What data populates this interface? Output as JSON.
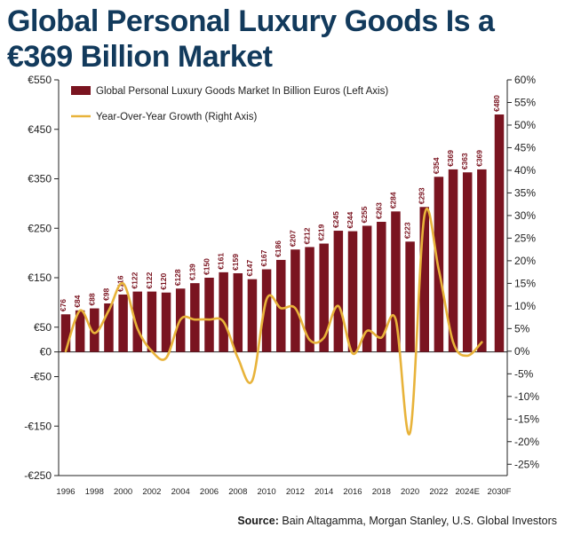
{
  "title_line1": "Global Personal Luxury Goods Is a",
  "title_line2": "€369 Billion Market",
  "source_label": "Source:",
  "source_text": "Bain Altagamma, Morgan Stanley, U.S. Global Investors",
  "colors": {
    "bar": "#7a1420",
    "line": "#e8b33a",
    "title": "#123a5c"
  },
  "chart_data": {
    "type": "bar",
    "x": [
      1996,
      1997,
      1998,
      1999,
      2000,
      2001,
      2002,
      2003,
      2004,
      2005,
      2006,
      2007,
      2008,
      2009,
      2010,
      2011,
      2012,
      2013,
      2014,
      2015,
      2016,
      2017,
      2018,
      2019,
      2020,
      2021,
      2022,
      2023,
      2024,
      2025,
      2030
    ],
    "x_tick_labels": [
      {
        "x": 1996,
        "label": "1996"
      },
      {
        "x": 1998,
        "label": "1998"
      },
      {
        "x": 2000,
        "label": "2000"
      },
      {
        "x": 2002,
        "label": "2002"
      },
      {
        "x": 2004,
        "label": "2004"
      },
      {
        "x": 2006,
        "label": "2006"
      },
      {
        "x": 2008,
        "label": "2008"
      },
      {
        "x": 2010,
        "label": "2010"
      },
      {
        "x": 2012,
        "label": "2012"
      },
      {
        "x": 2014,
        "label": "2014"
      },
      {
        "x": 2016,
        "label": "2016"
      },
      {
        "x": 2018,
        "label": "2018"
      },
      {
        "x": 2020,
        "label": "2020"
      },
      {
        "x": 2022,
        "label": "2022"
      },
      {
        "x": 2024,
        "label": "2024E"
      },
      {
        "x": 2030,
        "label": "2030F"
      }
    ],
    "series": [
      {
        "name": "Global Personal Luxury Goods Market In Billion Euros (Left Axis)",
        "type": "bar",
        "axis": "left",
        "values": [
          76,
          84,
          88,
          98,
          116,
          122,
          122,
          120,
          128,
          139,
          150,
          161,
          159,
          147,
          167,
          186,
          207,
          212,
          219,
          245,
          244,
          255,
          263,
          284,
          223,
          293,
          354,
          369,
          363,
          369,
          480
        ],
        "labels": [
          "€76",
          "€84",
          "€88",
          "€98",
          "€116",
          "€122",
          "€122",
          "€120",
          "€128",
          "€139",
          "€150",
          "€161",
          "€159",
          "€147",
          "€167",
          "€186",
          "€207",
          "€212",
          "€219",
          "€245",
          "€244",
          "€255",
          "€263",
          "€284",
          "€223",
          "€293",
          "€354",
          "€369",
          "€363",
          "€369",
          "€480"
        ]
      },
      {
        "name": "Year-Over-Year Growth (Right Axis)",
        "type": "line",
        "axis": "right",
        "x": [
          1996,
          1997,
          1998,
          1999,
          2000,
          2001,
          2002,
          2003,
          2004,
          2005,
          2006,
          2007,
          2008,
          2009,
          2010,
          2011,
          2012,
          2013,
          2014,
          2015,
          2016,
          2017,
          2018,
          2019,
          2020,
          2021,
          2022,
          2023,
          2024,
          2025
        ],
        "values": [
          0,
          9,
          4,
          9,
          15,
          5,
          0,
          -1.5,
          7,
          7,
          7,
          6.5,
          -1.5,
          -6.5,
          11.5,
          9.5,
          9.5,
          2.5,
          3,
          10,
          -0.5,
          4.5,
          3,
          7,
          -18,
          30,
          18,
          2,
          -1,
          2
        ]
      }
    ],
    "y_left": {
      "min": -250,
      "max": 550,
      "ticks": [
        -250,
        -150,
        -50,
        0,
        50,
        150,
        250,
        350,
        450,
        550
      ],
      "tick_labels": [
        "-€250",
        "-€150",
        "-€50",
        "€0",
        "€50",
        "€150",
        "€250",
        "€350",
        "€450",
        "€550"
      ]
    },
    "y_right": {
      "min": -27.5,
      "max": 60,
      "ticks": [
        -25,
        -20,
        -15,
        -10,
        -5,
        0,
        5,
        10,
        15,
        20,
        25,
        30,
        35,
        40,
        45,
        50,
        55,
        60
      ],
      "tick_labels": [
        "-25%",
        "-20%",
        "-15%",
        "-10%",
        "-5%",
        "0%",
        "5%",
        "10%",
        "15%",
        "20%",
        "25%",
        "30%",
        "35%",
        "40%",
        "45%",
        "50%",
        "55%",
        "60%"
      ]
    },
    "legend": {
      "placement": "top-left"
    },
    "grid": false
  }
}
